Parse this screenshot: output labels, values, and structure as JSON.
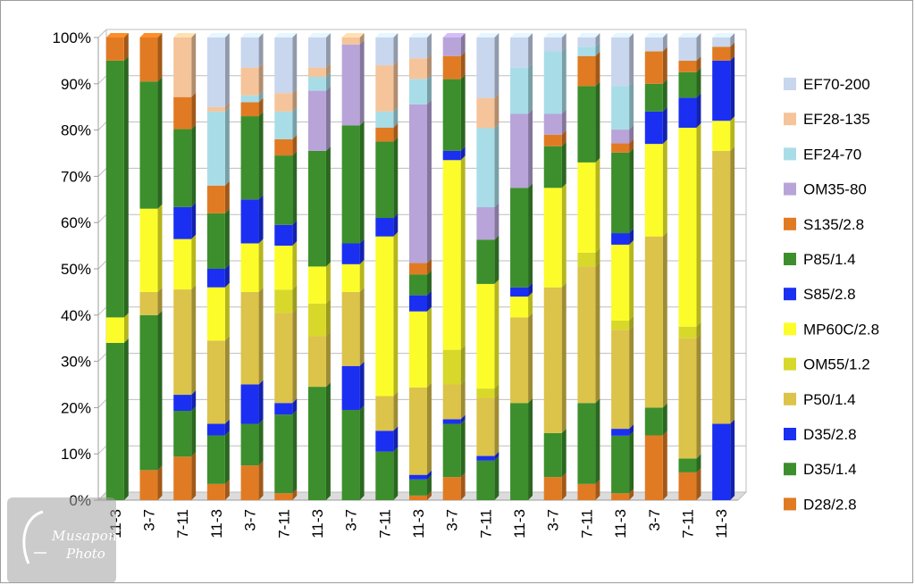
{
  "chart_data": {
    "type": "bar",
    "stacked": "percent",
    "categories": [
      "11-3",
      "3-7",
      "7-11",
      "11-3",
      "3-7",
      "7-11",
      "11-3",
      "3-7",
      "7-11",
      "11-3",
      "3-7",
      "7-11",
      "11-3",
      "3-7",
      "7-11",
      "11-3",
      "3-7",
      "7-11",
      "11-3"
    ],
    "y_ticks": [
      "0%",
      "10%",
      "20%",
      "30%",
      "40%",
      "50%",
      "60%",
      "70%",
      "80%",
      "90%",
      "100%"
    ],
    "ylim": [
      0,
      100
    ],
    "grid": true,
    "legend_position": "right",
    "series": [
      {
        "name": "D28/2.8",
        "color": "#e07b23",
        "values": [
          0,
          6.5,
          9.5,
          3.5,
          7.5,
          1.5,
          0,
          0,
          0,
          1,
          5,
          0,
          0,
          5,
          3.5,
          1.5,
          14,
          6,
          0
        ]
      },
      {
        "name": "D35/1.4",
        "color": "#3c8f2c",
        "values": [
          34,
          33.5,
          10,
          10.5,
          9,
          17,
          24.5,
          19.5,
          10.5,
          3.5,
          11.5,
          8.5,
          21,
          9.5,
          17.5,
          12.5,
          6,
          3,
          0
        ]
      },
      {
        "name": "D35/2.8",
        "color": "#1a2ff2",
        "values": [
          0,
          0,
          3.5,
          2.5,
          8.5,
          2.5,
          0,
          9.5,
          4.5,
          1,
          1,
          1,
          0,
          0,
          0,
          1.5,
          0,
          0,
          16.5
        ]
      },
      {
        "name": "P50/1.4",
        "color": "#dcc349",
        "values": [
          0,
          5,
          23,
          18,
          20,
          19.5,
          11,
          16,
          7.5,
          19,
          7.5,
          12.5,
          18.5,
          31.5,
          29.5,
          21.5,
          37,
          26,
          59
        ]
      },
      {
        "name": "OM55/1.2",
        "color": "#d8d82b",
        "values": [
          0,
          0,
          0,
          0,
          0,
          5,
          7,
          0,
          0,
          0,
          7.5,
          2,
          0,
          0,
          3,
          2,
          0,
          2.5,
          0
        ]
      },
      {
        "name": "MP60C/2.8",
        "color": "#fcfc2a",
        "values": [
          5.5,
          18,
          11,
          11.5,
          10.5,
          9.5,
          8,
          6,
          34.5,
          16.5,
          41,
          22.5,
          4.5,
          21.5,
          19.5,
          16.5,
          20,
          43,
          6.5
        ]
      },
      {
        "name": "S85/2.8",
        "color": "#1a2ff2",
        "values": [
          0,
          0,
          7,
          4,
          9.5,
          4.5,
          0,
          4.5,
          4,
          3.5,
          2,
          0,
          2,
          0,
          0,
          2.5,
          7,
          6.5,
          13
        ]
      },
      {
        "name": "P85/1.4",
        "color": "#3c8f2c",
        "values": [
          55.5,
          27.5,
          17,
          12,
          18,
          15,
          25,
          25.5,
          16.5,
          4.5,
          15.5,
          9.5,
          21.5,
          9,
          16.5,
          17.5,
          6,
          5.5,
          0
        ]
      },
      {
        "name": "S135/2.8",
        "color": "#e07b23",
        "values": [
          5,
          9.5,
          7,
          6,
          3,
          3.5,
          0,
          0,
          3,
          2.5,
          5,
          0,
          0,
          2.5,
          6.5,
          2,
          7,
          2.5,
          3
        ]
      },
      {
        "name": "OM35-80",
        "color": "#b8a4d8",
        "values": [
          0,
          0,
          0,
          0,
          0,
          0,
          13,
          17.5,
          0,
          34.5,
          4,
          7,
          16,
          4.5,
          0,
          3,
          0,
          0,
          0
        ]
      },
      {
        "name": "EF24-70",
        "color": "#a8dde8",
        "values": [
          0,
          0,
          0,
          16,
          1.5,
          6,
          3,
          0,
          3.5,
          5.5,
          0,
          17,
          10,
          13.5,
          2,
          9.5,
          0,
          0,
          0
        ]
      },
      {
        "name": "EF28-135",
        "color": "#f5c49a",
        "values": [
          0,
          0,
          13,
          1,
          6,
          4,
          2,
          1.5,
          10,
          4.5,
          0,
          6.5,
          0,
          0,
          0,
          0,
          0,
          0,
          0
        ]
      },
      {
        "name": "EF70-200",
        "color": "#c8d6ee",
        "values": [
          0,
          0,
          0,
          15,
          6.5,
          12,
          6.5,
          0,
          6,
          4.5,
          0,
          13,
          6.5,
          3,
          2,
          10.5,
          3,
          5,
          2
        ]
      }
    ]
  },
  "legend": [
    {
      "label": "EF70-200",
      "color": "#c8d6ee"
    },
    {
      "label": "EF28-135",
      "color": "#f5c49a"
    },
    {
      "label": "EF24-70",
      "color": "#a8dde8"
    },
    {
      "label": "OM35-80",
      "color": "#b8a4d8"
    },
    {
      "label": "S135/2.8",
      "color": "#e07b23"
    },
    {
      "label": "P85/1.4",
      "color": "#3c8f2c"
    },
    {
      "label": "S85/2.8",
      "color": "#1a2ff2"
    },
    {
      "label": "MP60C/2.8",
      "color": "#fcfc2a"
    },
    {
      "label": "OM55/1.2",
      "color": "#d8d82b"
    },
    {
      "label": "P50/1.4",
      "color": "#dcc349"
    },
    {
      "label": "D35/2.8",
      "color": "#1a2ff2"
    },
    {
      "label": "D35/1.4",
      "color": "#3c8f2c"
    },
    {
      "label": "D28/2.8",
      "color": "#e07b23"
    }
  ],
  "watermark": {
    "line1": "Musapon",
    "line2": "Photo"
  }
}
